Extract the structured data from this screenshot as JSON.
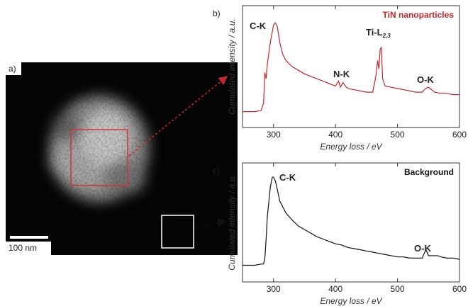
{
  "panels": {
    "a": {
      "label": "a)",
      "scale_bar": "100 nm"
    }
  },
  "chart_data": [
    {
      "type": "line",
      "label": "b)",
      "x_label": "Energy loss / eV",
      "y_label": "Cumulated intensity / a.u.",
      "xlim": [
        250,
        600
      ],
      "xticks": [
        300,
        400,
        500,
        600
      ],
      "ylim": [
        0,
        100
      ],
      "x": [
        250,
        260,
        270,
        280,
        284,
        286,
        288,
        290,
        295,
        300,
        303,
        306,
        310,
        315,
        320,
        330,
        340,
        350,
        360,
        370,
        380,
        390,
        400,
        405,
        408,
        412,
        416,
        420,
        430,
        440,
        450,
        460,
        465,
        468,
        470,
        472,
        474,
        476,
        480,
        490,
        500,
        510,
        520,
        530,
        540,
        545,
        550,
        555,
        560,
        570,
        580,
        590,
        600
      ],
      "series": [
        {
          "name": "TiN nanoparticles",
          "color": "#c0272d",
          "values": [
            13,
            13,
            13,
            14,
            20,
            45,
            40,
            52,
            70,
            84,
            86,
            83,
            70,
            60,
            55,
            50,
            47,
            44,
            42,
            40,
            38,
            36,
            34,
            38,
            33,
            37,
            34,
            32,
            31,
            30,
            29,
            29,
            42,
            55,
            48,
            64,
            66,
            40,
            34,
            33,
            32,
            31,
            30,
            29,
            29,
            32,
            33,
            31,
            29,
            28,
            28,
            27,
            27
          ]
        }
      ],
      "annotations": [
        {
          "text": "C-K"
        },
        {
          "text": "N-K"
        },
        {
          "text": "Ti-L",
          "subscript": "2,3"
        },
        {
          "text": "O-K"
        }
      ]
    },
    {
      "type": "line",
      "label": "c)",
      "x_label": "Energy loss / eV",
      "y_label": "Cumulated intensity / a.u.",
      "xlim": [
        250,
        600
      ],
      "xticks": [
        300,
        400,
        500,
        600
      ],
      "ylim": [
        0,
        100
      ],
      "x": [
        250,
        260,
        270,
        280,
        284,
        286,
        288,
        290,
        295,
        298,
        300,
        303,
        306,
        310,
        320,
        330,
        340,
        350,
        360,
        370,
        380,
        390,
        400,
        410,
        420,
        430,
        440,
        450,
        460,
        470,
        480,
        490,
        500,
        510,
        520,
        530,
        540,
        543,
        546,
        550,
        555,
        560,
        565,
        570,
        580,
        590,
        600
      ],
      "series": [
        {
          "name": "Background",
          "color": "#111111",
          "values": [
            14,
            14,
            14,
            15,
            15,
            20,
            35,
            55,
            80,
            88,
            88,
            85,
            78,
            68,
            58,
            52,
            47,
            44,
            41,
            38,
            36,
            34,
            32,
            31,
            29,
            28,
            27,
            26,
            25,
            24,
            23,
            22,
            21,
            21,
            20,
            20,
            20,
            24,
            27,
            22,
            22,
            22,
            22,
            21,
            20,
            20,
            19
          ]
        }
      ],
      "annotations": [
        {
          "text": "C-K"
        },
        {
          "text": "O-K"
        }
      ]
    }
  ]
}
